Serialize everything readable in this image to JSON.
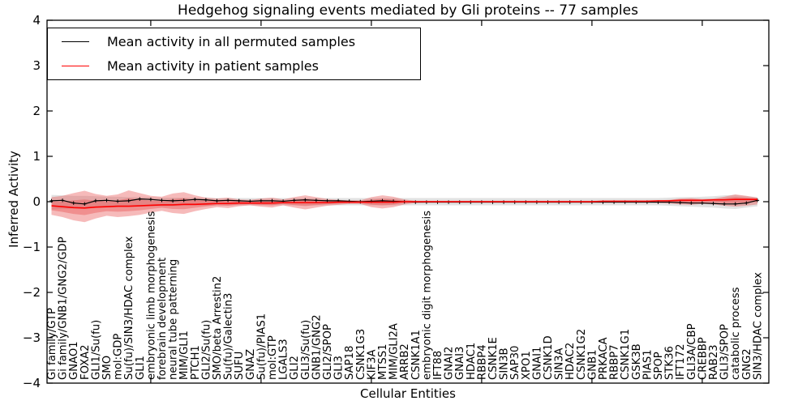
{
  "figure": {
    "title": "Hedgehog signaling events mediated by Gli proteins -- 77 samples",
    "xlabel": "Cellular Entities",
    "ylabel": "Inferred Activity"
  },
  "legend": {
    "entries": [
      {
        "label": "Mean activity in all permuted samples",
        "color": "#000000"
      },
      {
        "label": "Mean activity in patient samples",
        "color": "#ff0000"
      }
    ]
  },
  "chart_data": {
    "type": "line",
    "title": "Hedgehog signaling events mediated by Gli proteins -- 77 samples",
    "xlabel": "Cellular Entities",
    "ylabel": "Inferred Activity",
    "ylim": [
      -4,
      4
    ],
    "yticks": [
      -4,
      -3,
      -2,
      -1,
      0,
      1,
      2,
      3,
      4
    ],
    "x_major_tick_indices": [
      9,
      19,
      29,
      39,
      49,
      59
    ],
    "grid": false,
    "legend_position": "upper left",
    "categories": [
      "Gi family/GTP",
      "Gi family/GNB1/GNG2/GDP",
      "GNAO1",
      "FOXA2",
      "GLI1/Su(fu)",
      "SMO",
      "mol:GDP",
      "Su(fu)/SIN3/HDAC complex",
      "GLI1",
      "embryonic limb morphogenesis",
      "forebrain development",
      "neural tube patterning",
      "MIM/GLI1",
      "PTCH1",
      "GLI2/Su(fu)",
      "SMO/beta Arrestin2",
      "Su(fu)/Galectin3",
      "SUFU",
      "GNAZ",
      "Su(fu)/PIAS1",
      "mol:GTP",
      "LGALS3",
      "GLI2",
      "GLI3/Su(fu)",
      "GNB1/GNG2",
      "GLI2/SPOP",
      "GLI3",
      "SAP18",
      "CSNK1G3",
      "KIF3A",
      "MTSS1",
      "MIM/GLI2A",
      "ARRB2",
      "CSNK1A1",
      "embryonic digit morphogenesis",
      "IFT88",
      "GNAI2",
      "GNAI3",
      "HDAC1",
      "RBBP4",
      "CSNK1E",
      "SIN3B",
      "SAP30",
      "XPO1",
      "GNAI1",
      "CSNK1D",
      "SIN3A",
      "HDAC2",
      "CSNK1G2",
      "GNB1",
      "PRKACA",
      "RBBP7",
      "CSNK1G1",
      "GSK3B",
      "PIAS1",
      "SPOP",
      "STK36",
      "IFT172",
      "GLI3A/CBP",
      "CREBBP",
      "RAB23",
      "GLI3/SPOP",
      "catabolic process",
      "GNG2",
      "SIN3/HDAC complex"
    ],
    "series": [
      {
        "name": "Mean activity in all permuted samples",
        "type": "line",
        "color": "#000000",
        "marker": "+",
        "values": [
          0.02,
          0.03,
          -0.03,
          -0.05,
          0.02,
          0.03,
          0.01,
          0.02,
          0.06,
          0.05,
          0.03,
          0.02,
          0.03,
          0.05,
          0.04,
          0.02,
          0.03,
          0.02,
          0.01,
          0.02,
          0.02,
          0.01,
          0.03,
          0.04,
          0.03,
          0.02,
          0.02,
          0.01,
          0.0,
          0.01,
          0.02,
          0.01,
          0.0,
          -0.01,
          -0.01,
          -0.01,
          -0.01,
          -0.01,
          -0.01,
          -0.01,
          -0.01,
          -0.01,
          -0.01,
          -0.01,
          -0.01,
          -0.01,
          -0.01,
          -0.01,
          -0.01,
          -0.01,
          -0.01,
          -0.01,
          -0.01,
          -0.01,
          -0.01,
          -0.01,
          -0.01,
          -0.02,
          -0.03,
          -0.03,
          -0.04,
          -0.05,
          -0.05,
          -0.03,
          0.03
        ]
      },
      {
        "name": "Mean activity in patient samples",
        "type": "line",
        "color": "#ff0000",
        "marker": "none",
        "values": [
          -0.09,
          -0.11,
          -0.13,
          -0.14,
          -0.12,
          -0.11,
          -0.1,
          -0.1,
          -0.09,
          -0.08,
          -0.07,
          -0.07,
          -0.06,
          -0.06,
          -0.05,
          -0.04,
          -0.04,
          -0.03,
          -0.03,
          -0.03,
          -0.03,
          -0.02,
          -0.02,
          -0.02,
          -0.02,
          -0.02,
          -0.01,
          -0.01,
          -0.01,
          -0.01,
          -0.01,
          -0.01,
          0.0,
          0.0,
          0.0,
          0.0,
          0.0,
          0.0,
          0.0,
          0.0,
          0.0,
          0.0,
          0.0,
          0.0,
          0.0,
          0.0,
          0.0,
          0.0,
          0.0,
          0.0,
          0.01,
          0.01,
          0.01,
          0.01,
          0.01,
          0.02,
          0.02,
          0.03,
          0.03,
          0.03,
          0.04,
          0.04,
          0.05,
          0.05,
          0.05
        ]
      },
      {
        "name": "Permuted samples std band",
        "type": "band",
        "color": "#bfbfbf",
        "opacity": 0.45,
        "upper": [
          0.15,
          0.14,
          0.13,
          0.13,
          0.12,
          0.11,
          0.11,
          0.1,
          0.1,
          0.1,
          0.09,
          0.09,
          0.09,
          0.09,
          0.09,
          0.08,
          0.08,
          0.08,
          0.08,
          0.08,
          0.08,
          0.08,
          0.08,
          0.08,
          0.08,
          0.08,
          0.08,
          0.08,
          0.08,
          0.08,
          0.08,
          0.08,
          0.08,
          0.08,
          0.08,
          0.08,
          0.08,
          0.08,
          0.08,
          0.08,
          0.08,
          0.08,
          0.08,
          0.08,
          0.08,
          0.08,
          0.08,
          0.08,
          0.08,
          0.08,
          0.08,
          0.08,
          0.08,
          0.08,
          0.08,
          0.08,
          0.09,
          0.1,
          0.1,
          0.11,
          0.12,
          0.14,
          0.15,
          0.12,
          0.1
        ],
        "lower": [
          -0.17,
          -0.16,
          -0.15,
          -0.15,
          -0.13,
          -0.12,
          -0.12,
          -0.11,
          -0.11,
          -0.1,
          -0.1,
          -0.1,
          -0.09,
          -0.09,
          -0.09,
          -0.08,
          -0.08,
          -0.08,
          -0.08,
          -0.08,
          -0.08,
          -0.08,
          -0.08,
          -0.08,
          -0.08,
          -0.08,
          -0.08,
          -0.08,
          -0.08,
          -0.08,
          -0.08,
          -0.08,
          -0.08,
          -0.08,
          -0.08,
          -0.08,
          -0.08,
          -0.08,
          -0.08,
          -0.08,
          -0.08,
          -0.08,
          -0.08,
          -0.08,
          -0.08,
          -0.08,
          -0.08,
          -0.08,
          -0.08,
          -0.08,
          -0.08,
          -0.08,
          -0.08,
          -0.08,
          -0.08,
          -0.08,
          -0.09,
          -0.1,
          -0.11,
          -0.12,
          -0.13,
          -0.15,
          -0.16,
          -0.13,
          -0.1
        ]
      },
      {
        "name": "Patient samples std band",
        "type": "band",
        "color": "#e84a4a",
        "opacity": 0.38,
        "inner_fraction": 0.5,
        "upper": [
          0.1,
          0.13,
          0.19,
          0.24,
          0.17,
          0.13,
          0.16,
          0.25,
          0.19,
          0.13,
          0.11,
          0.18,
          0.21,
          0.14,
          0.09,
          0.07,
          0.09,
          0.05,
          0.04,
          0.07,
          0.09,
          0.05,
          0.1,
          0.14,
          0.1,
          0.06,
          0.04,
          0.03,
          0.03,
          0.1,
          0.14,
          0.11,
          0.05,
          0.02,
          0.02,
          0.02,
          0.02,
          0.02,
          0.02,
          0.02,
          0.02,
          0.02,
          0.02,
          0.02,
          0.02,
          0.02,
          0.02,
          0.02,
          0.02,
          0.02,
          0.02,
          0.02,
          0.02,
          0.02,
          0.02,
          0.03,
          0.04,
          0.07,
          0.08,
          0.06,
          0.07,
          0.11,
          0.16,
          0.13,
          0.09
        ],
        "lower": [
          -0.29,
          -0.34,
          -0.41,
          -0.45,
          -0.37,
          -0.31,
          -0.34,
          -0.32,
          -0.29,
          -0.24,
          -0.2,
          -0.25,
          -0.27,
          -0.21,
          -0.16,
          -0.12,
          -0.14,
          -0.1,
          -0.08,
          -0.11,
          -0.13,
          -0.08,
          -0.13,
          -0.17,
          -0.13,
          -0.09,
          -0.07,
          -0.05,
          -0.05,
          -0.12,
          -0.15,
          -0.12,
          -0.06,
          -0.03,
          -0.02,
          -0.02,
          -0.02,
          -0.02,
          -0.02,
          -0.02,
          -0.02,
          -0.02,
          -0.02,
          -0.02,
          -0.02,
          -0.02,
          -0.02,
          -0.02,
          -0.02,
          -0.02,
          -0.02,
          -0.02,
          -0.02,
          -0.02,
          -0.02,
          -0.03,
          -0.04,
          -0.06,
          -0.07,
          -0.05,
          -0.06,
          -0.09,
          -0.11,
          -0.09,
          -0.06
        ]
      }
    ]
  }
}
